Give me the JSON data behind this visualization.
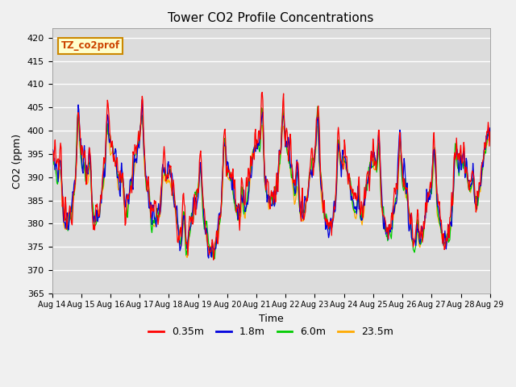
{
  "title": "Tower CO2 Profile Concentrations",
  "xlabel": "Time",
  "ylabel": "CO2 (ppm)",
  "ylim": [
    365,
    422
  ],
  "yticks": [
    365,
    370,
    375,
    380,
    385,
    390,
    395,
    400,
    405,
    410,
    415,
    420
  ],
  "xtick_labels": [
    "Aug 14",
    "Aug 15",
    "Aug 16",
    "Aug 17",
    "Aug 18",
    "Aug 19",
    "Aug 20",
    "Aug 21",
    "Aug 22",
    "Aug 23",
    "Aug 24",
    "Aug 25",
    "Aug 26",
    "Aug 27",
    "Aug 28",
    "Aug 29"
  ],
  "series_names": [
    "0.35m",
    "1.8m",
    "6.0m",
    "23.5m"
  ],
  "series_colors": [
    "#ff0000",
    "#0000dd",
    "#00cc00",
    "#ffaa00"
  ],
  "legend_label": "TZ_co2prof",
  "fig_facecolor": "#f0f0f0",
  "axes_facecolor": "#dcdcdc",
  "grid_color": "#ffffff",
  "seed": 12345,
  "n_points": 720,
  "figsize": [
    6.4,
    4.8
  ],
  "dpi": 100
}
